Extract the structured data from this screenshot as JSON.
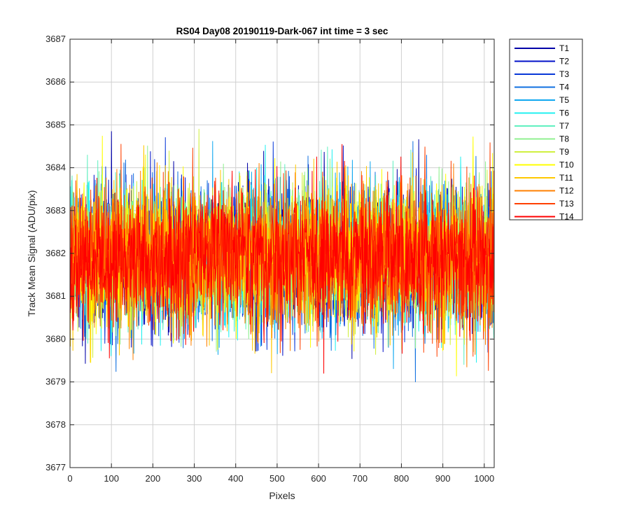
{
  "chart_data": {
    "type": "line",
    "title": "RS04 Day08 20190119-Dark-067 int time = 3 sec",
    "xlabel": "Pixels",
    "ylabel": "Track Mean Signal (ADU/pix)",
    "xlim": [
      0,
      1024
    ],
    "ylim": [
      3677,
      3687
    ],
    "xticks": [
      "0",
      "100",
      "200",
      "300",
      "400",
      "500",
      "600",
      "700",
      "800",
      "900",
      "1000"
    ],
    "yticks": [
      "3677",
      "3678",
      "3679",
      "3680",
      "3681",
      "3682",
      "3683",
      "3684",
      "3685",
      "3686",
      "3687"
    ],
    "grid": true,
    "legend_position": "outside-top-right",
    "n_points_per_series": 1024,
    "series_mean": 3681.9,
    "series_spread_min": 3677.8,
    "series_spread_max": 3686.1,
    "series": [
      {
        "name": "T1",
        "color": "#0000a8"
      },
      {
        "name": "T2",
        "color": "#0010c8"
      },
      {
        "name": "T3",
        "color": "#0838d8"
      },
      {
        "name": "T4",
        "color": "#1070e0"
      },
      {
        "name": "T5",
        "color": "#10a8f0"
      },
      {
        "name": "T6",
        "color": "#20f0f0"
      },
      {
        "name": "T7",
        "color": "#60f0c0"
      },
      {
        "name": "T8",
        "color": "#90f090"
      },
      {
        "name": "T9",
        "color": "#d0f040"
      },
      {
        "name": "T10",
        "color": "#ffff00"
      },
      {
        "name": "T11",
        "color": "#ffc800"
      },
      {
        "name": "T12",
        "color": "#ff8000"
      },
      {
        "name": "T13",
        "color": "#ff4000"
      },
      {
        "name": "T14",
        "color": "#ff0000"
      }
    ]
  }
}
